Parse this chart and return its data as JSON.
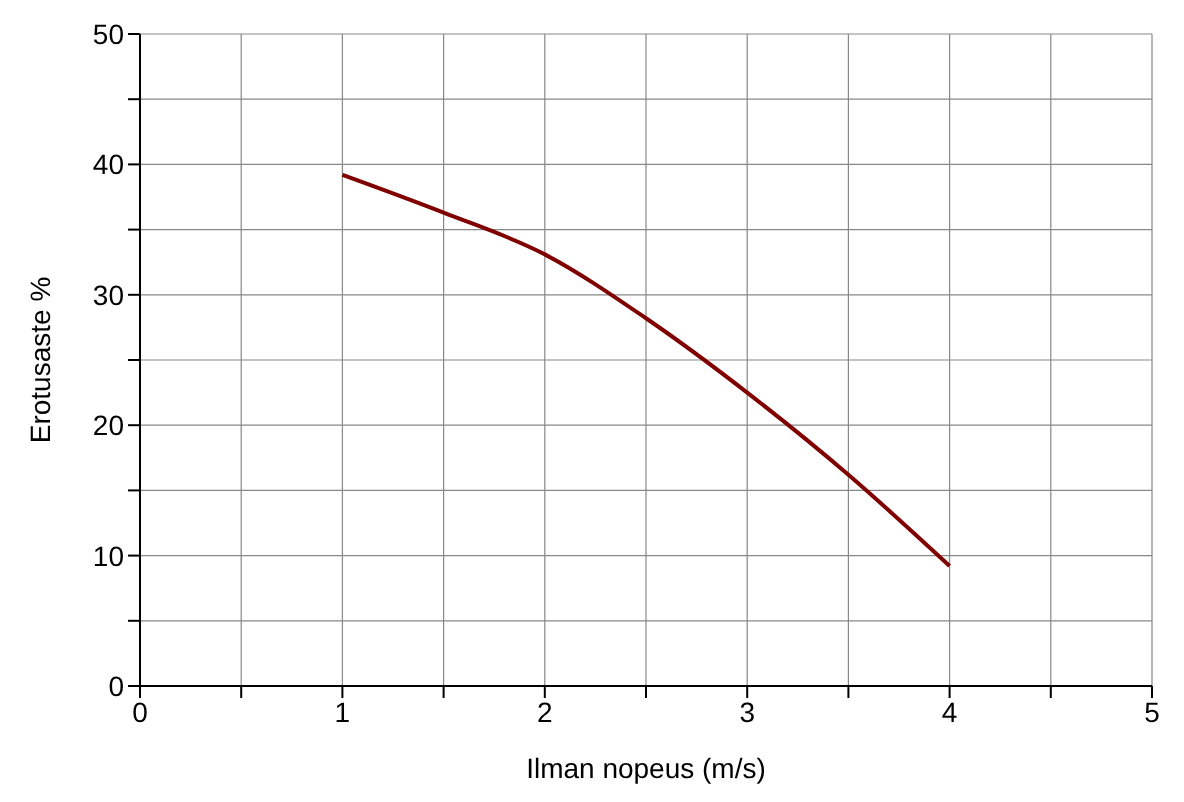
{
  "chart_data": {
    "type": "line",
    "xlabel": "Ilman nopeus (m/s)",
    "ylabel": "Erotusaste %",
    "x": [
      1,
      1.5,
      2,
      2.5,
      3,
      3.5,
      4
    ],
    "series": [
      {
        "color": "#800000",
        "values": [
          39.2,
          36.3,
          33.1,
          28.2,
          22.5,
          16.2,
          9.2
        ]
      }
    ],
    "xlim": [
      0,
      5
    ],
    "xticks": [
      0,
      {
        "value": 0.5,
        "label": null
      },
      1,
      {
        "value": 1.5,
        "label": null
      },
      2,
      {
        "value": 2.5,
        "label": null
      },
      3,
      {
        "value": 3.5,
        "label": null
      },
      4,
      {
        "value": 4.5,
        "label": null
      },
      5
    ],
    "ylim": [
      0,
      50
    ],
    "yticks": [
      0,
      {
        "value": 5,
        "label": null
      },
      10,
      {
        "value": 15,
        "label": null
      },
      20,
      {
        "value": 25,
        "label": null
      },
      30,
      {
        "value": 35,
        "label": null
      },
      40,
      {
        "value": 45,
        "label": null
      },
      50
    ],
    "grid": true,
    "marker": "none",
    "line_style": "solid",
    "legend": false
  }
}
